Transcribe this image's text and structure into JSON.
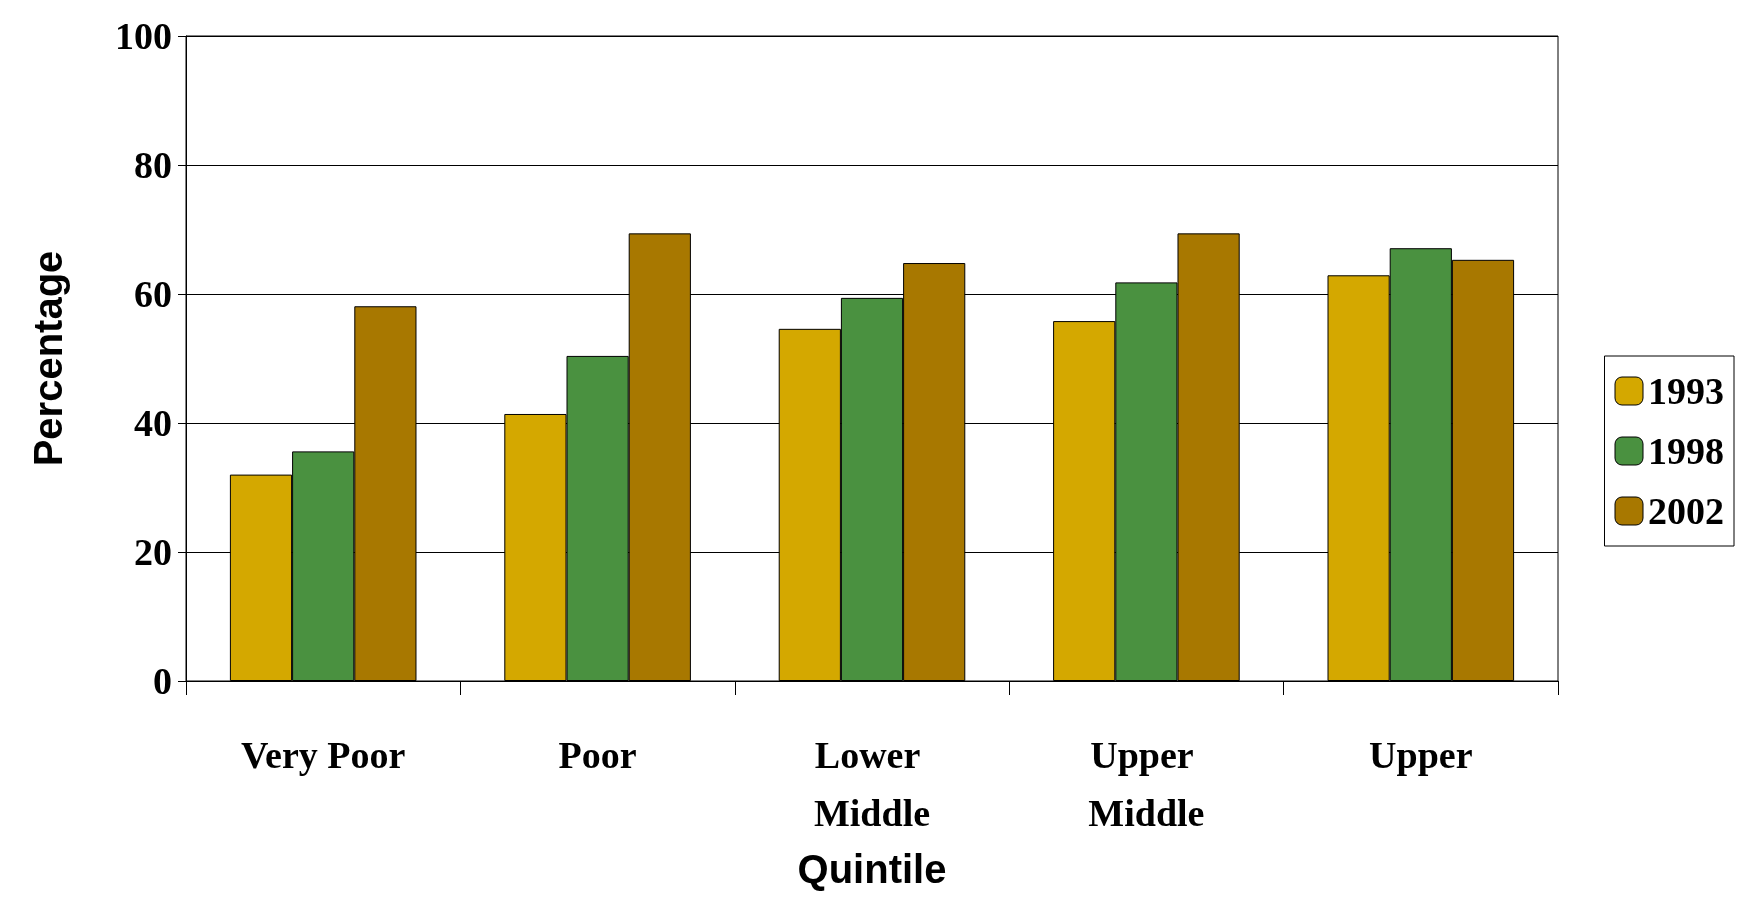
{
  "chart_data": {
    "type": "bar",
    "xlabel": "Quintile",
    "ylabel": "Percentage",
    "categories": [
      "Very Poor",
      "Poor",
      "Lower Middle",
      "Upper Middle",
      "Upper"
    ],
    "series": [
      {
        "name": "1993",
        "color": "#d4a800",
        "values": [
          32,
          41.4,
          54.6,
          55.8,
          62.9
        ]
      },
      {
        "name": "1998",
        "color": "#4a9140",
        "values": [
          35.6,
          50.4,
          59.4,
          61.8,
          67.1
        ]
      },
      {
        "name": "2002",
        "color": "#a87800",
        "values": [
          58.1,
          69.4,
          64.8,
          69.4,
          65.3
        ]
      }
    ],
    "ylim": [
      0,
      100
    ],
    "yticks": [
      0,
      20,
      40,
      60,
      80,
      100
    ],
    "grid": "y",
    "legend": "right"
  }
}
